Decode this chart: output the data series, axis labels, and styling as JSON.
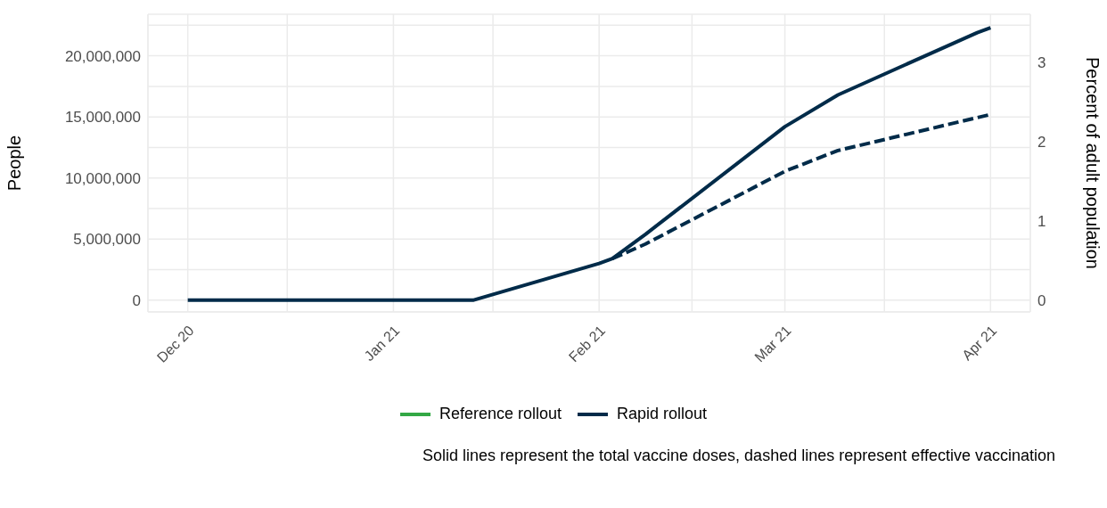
{
  "chart_data": {
    "type": "line",
    "ylabel": "People",
    "y2label": "Percent of adult population",
    "x": [
      "2020-12-01",
      "2021-01-13",
      "2021-02-01",
      "2021-02-03",
      "2021-02-08",
      "2021-03-01",
      "2021-03-09",
      "2021-03-30",
      "2021-04-01"
    ],
    "series": [
      {
        "name": "Reference rollout",
        "color": "#33a845",
        "values": [
          null,
          null,
          null,
          null,
          null,
          null,
          null,
          null,
          null
        ]
      },
      {
        "name": "Rapid rollout",
        "color": "#002b49",
        "values": [
          0,
          0,
          3000000,
          3400000,
          5400000,
          14200000,
          16800000,
          21900000,
          22300000
        ]
      },
      {
        "color": "#002b49",
        "line_style": "dashed",
        "x": [
          "2021-02-03",
          "2021-02-08",
          "2021-03-01",
          "2021-03-09",
          "2021-04-01"
        ],
        "values": [
          3400000,
          4600000,
          10550000,
          12250000,
          15200000
        ]
      }
    ],
    "xlim": [
      "2020-11-25",
      "2021-04-07"
    ],
    "xticks": [
      {
        "value": "2020-12-01",
        "label": "Dec 20"
      },
      {
        "value": "2020-12-16",
        "label": null
      },
      {
        "value": "2021-01-01",
        "label": "Jan 21"
      },
      {
        "value": "2021-01-16",
        "label": null
      },
      {
        "value": "2021-02-01",
        "label": "Feb 21"
      },
      {
        "value": "2021-02-15",
        "label": null
      },
      {
        "value": "2021-03-01",
        "label": "Mar 21"
      },
      {
        "value": "2021-03-16",
        "label": null
      },
      {
        "value": "2021-04-01",
        "label": "Apr 21"
      }
    ],
    "ylim": [
      -960000,
      23400000
    ],
    "yticks": [
      {
        "value": 0,
        "label": "0"
      },
      {
        "value": 2500000,
        "label": null
      },
      {
        "value": 5000000,
        "label": "5,000,000"
      },
      {
        "value": 7500000,
        "label": null
      },
      {
        "value": 10000000,
        "label": "10,000,000"
      },
      {
        "value": 12500000,
        "label": null
      },
      {
        "value": 15000000,
        "label": "15,000,000"
      },
      {
        "value": 17500000,
        "label": null
      },
      {
        "value": 20000000,
        "label": "20,000,000"
      },
      {
        "value": 22500000,
        "label": null
      }
    ],
    "y2lim": [
      -0.148,
      3.6
    ],
    "y2ticks": [
      0,
      1,
      2,
      3
    ],
    "grid": true,
    "legend": "bottom",
    "line_style": "solid",
    "marker": "none",
    "annotations": [
      "Solid lines represent the total vaccine doses, dashed lines represent effective vaccination"
    ]
  }
}
